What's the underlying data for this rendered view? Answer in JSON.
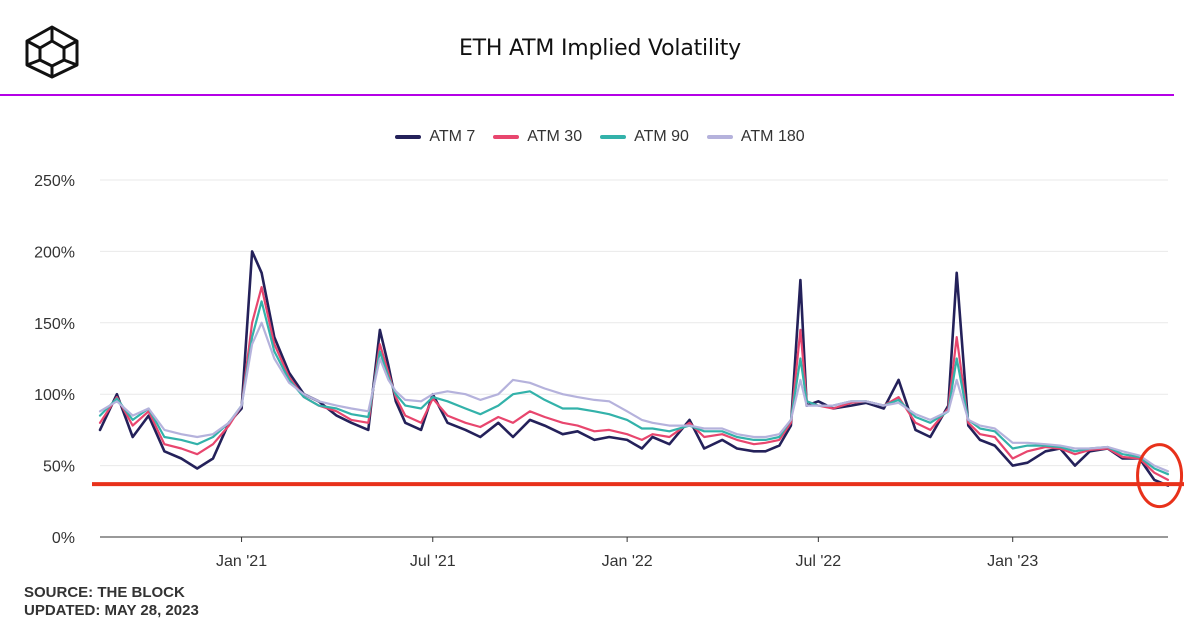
{
  "header": {
    "title": "ETH ATM Implied Volatility"
  },
  "footer": {
    "source": "SOURCE: THE BLOCK",
    "updated": "UPDATED: MAY 28, 2023"
  },
  "colors": {
    "rule": "#b400e6",
    "threshold_line": "#e8311a",
    "highlight_circle": "#e8311a"
  },
  "chart_data": {
    "type": "line",
    "title": "ETH ATM Implied Volatility",
    "xlabel": "",
    "ylabel": "",
    "ylim": [
      0,
      250
    ],
    "yticks": [
      "0%",
      "50%",
      "100%",
      "150%",
      "200%",
      "250%"
    ],
    "ytick_values": [
      0,
      50,
      100,
      150,
      200,
      250
    ],
    "x_range": [
      "2020-08-20",
      "2023-05-28"
    ],
    "xticks": [
      {
        "label": "Jan '21",
        "date": "2021-01-01"
      },
      {
        "label": "Jul '21",
        "date": "2021-07-01"
      },
      {
        "label": "Jan '22",
        "date": "2022-01-01"
      },
      {
        "label": "Jul '22",
        "date": "2022-07-01"
      },
      {
        "label": "Jan '23",
        "date": "2023-01-01"
      }
    ],
    "grid": "horizontal",
    "legend_position": "top-center",
    "x": [
      "2020-08-20",
      "2020-09-05",
      "2020-09-20",
      "2020-10-05",
      "2020-10-20",
      "2020-11-05",
      "2020-11-20",
      "2020-12-05",
      "2020-12-20",
      "2021-01-01",
      "2021-01-11",
      "2021-01-20",
      "2021-02-01",
      "2021-02-15",
      "2021-03-01",
      "2021-03-15",
      "2021-04-01",
      "2021-04-15",
      "2021-05-01",
      "2021-05-12",
      "2021-05-20",
      "2021-05-27",
      "2021-06-05",
      "2021-06-20",
      "2021-07-01",
      "2021-07-15",
      "2021-08-01",
      "2021-08-15",
      "2021-09-01",
      "2021-09-15",
      "2021-10-01",
      "2021-10-15",
      "2021-11-01",
      "2021-11-15",
      "2021-12-01",
      "2021-12-15",
      "2022-01-01",
      "2022-01-15",
      "2022-01-25",
      "2022-02-10",
      "2022-03-01",
      "2022-03-15",
      "2022-04-01",
      "2022-04-15",
      "2022-05-01",
      "2022-05-12",
      "2022-05-25",
      "2022-06-05",
      "2022-06-14",
      "2022-06-20",
      "2022-07-01",
      "2022-07-15",
      "2022-08-01",
      "2022-08-15",
      "2022-09-01",
      "2022-09-15",
      "2022-10-01",
      "2022-10-15",
      "2022-11-01",
      "2022-11-09",
      "2022-11-20",
      "2022-12-01",
      "2022-12-15",
      "2023-01-01",
      "2023-01-15",
      "2023-02-01",
      "2023-02-15",
      "2023-03-01",
      "2023-03-15",
      "2023-04-01",
      "2023-04-15",
      "2023-05-01",
      "2023-05-15",
      "2023-05-28"
    ],
    "series": [
      {
        "name": "ATM 7",
        "color": "#24215a",
        "width": 2.6,
        "values": [
          75,
          100,
          70,
          85,
          60,
          55,
          48,
          55,
          80,
          90,
          200,
          185,
          140,
          115,
          100,
          95,
          85,
          80,
          75,
          145,
          120,
          95,
          80,
          75,
          100,
          80,
          75,
          70,
          80,
          70,
          82,
          78,
          72,
          74,
          68,
          70,
          68,
          62,
          70,
          65,
          82,
          62,
          68,
          62,
          60,
          60,
          64,
          78,
          180,
          92,
          95,
          90,
          92,
          94,
          90,
          110,
          75,
          70,
          92,
          185,
          78,
          68,
          64,
          50,
          52,
          60,
          62,
          50,
          60,
          62,
          55,
          55,
          40,
          36
        ]
      },
      {
        "name": "ATM 30",
        "color": "#e8466e",
        "width": 2.2,
        "values": [
          80,
          98,
          78,
          88,
          65,
          62,
          58,
          65,
          78,
          92,
          150,
          175,
          135,
          112,
          98,
          92,
          88,
          82,
          80,
          135,
          115,
          98,
          85,
          80,
          97,
          85,
          80,
          77,
          84,
          80,
          88,
          84,
          80,
          78,
          74,
          75,
          72,
          68,
          72,
          70,
          80,
          70,
          72,
          68,
          65,
          66,
          68,
          80,
          145,
          95,
          92,
          90,
          94,
          95,
          92,
          98,
          80,
          75,
          90,
          140,
          80,
          72,
          70,
          55,
          60,
          63,
          62,
          58,
          61,
          62,
          56,
          55,
          45,
          40
        ]
      },
      {
        "name": "ATM 90",
        "color": "#33b2aa",
        "width": 2.2,
        "values": [
          85,
          97,
          82,
          90,
          70,
          68,
          65,
          70,
          80,
          92,
          140,
          165,
          130,
          110,
          98,
          92,
          90,
          86,
          84,
          130,
          112,
          100,
          92,
          90,
          98,
          95,
          90,
          86,
          92,
          100,
          102,
          96,
          90,
          90,
          88,
          86,
          82,
          76,
          76,
          74,
          78,
          74,
          74,
          70,
          68,
          68,
          70,
          82,
          125,
          95,
          92,
          92,
          95,
          95,
          92,
          96,
          84,
          80,
          88,
          125,
          82,
          76,
          74,
          62,
          64,
          64,
          63,
          60,
          62,
          63,
          58,
          56,
          48,
          44
        ]
      },
      {
        "name": "ATM 180",
        "color": "#b5b2dc",
        "width": 2.2,
        "values": [
          88,
          95,
          85,
          90,
          75,
          72,
          70,
          72,
          80,
          92,
          135,
          150,
          125,
          108,
          100,
          95,
          92,
          90,
          88,
          125,
          110,
          102,
          96,
          95,
          100,
          102,
          100,
          96,
          100,
          110,
          108,
          104,
          100,
          98,
          96,
          95,
          88,
          82,
          80,
          78,
          78,
          76,
          76,
          72,
          70,
          70,
          72,
          82,
          110,
          92,
          92,
          92,
          95,
          95,
          92,
          94,
          86,
          82,
          88,
          110,
          82,
          78,
          76,
          66,
          66,
          65,
          64,
          62,
          62,
          63,
          60,
          57,
          50,
          46
        ]
      }
    ],
    "annotations": {
      "threshold_value": 37,
      "highlight_date": "2023-05-20",
      "highlight_value": 43
    }
  }
}
